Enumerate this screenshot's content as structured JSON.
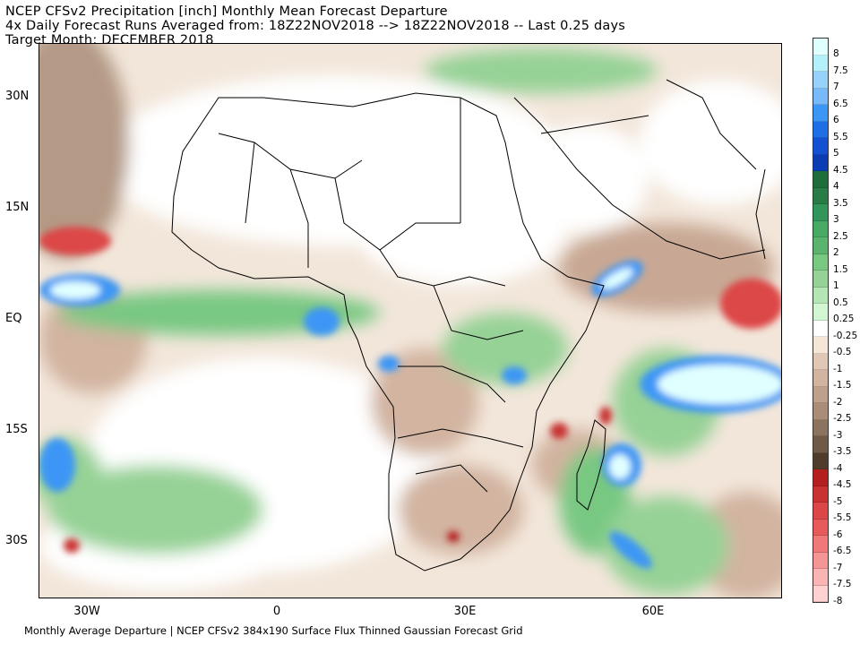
{
  "title": {
    "line1": "NCEP CFSv2 Precipitation [inch] Monthly Mean Forecast Departure",
    "line2": "4x Daily Forecast Runs Averaged from: 18Z22NOV2018 --> 18Z22NOV2018 -- Last 0.25 days",
    "line3": "Target Month: DECEMBER 2018"
  },
  "footer": "Monthly Average Departure | NCEP CFSv2 384x190 Surface Flux Thinned Gaussian Forecast Grid",
  "axes": {
    "lat_labels": [
      "30N",
      "15N",
      "EQ",
      "15S",
      "30S"
    ],
    "lon_labels": [
      "30W",
      "0",
      "30E",
      "60E"
    ]
  },
  "colorbar": {
    "labels": [
      "8",
      "7.5",
      "7",
      "6.5",
      "6",
      "5.5",
      "5",
      "4.5",
      "4",
      "3.5",
      "3",
      "2.5",
      "2",
      "1.5",
      "1",
      "0.5",
      "0.25",
      "-0.25",
      "-0.5",
      "-1",
      "-1.5",
      "-2",
      "-2.5",
      "-3",
      "-3.5",
      "-4",
      "-4.5",
      "-5",
      "-5.5",
      "-6",
      "-6.5",
      "-7",
      "-7.5",
      "-8"
    ],
    "colors": [
      "#e0ffff",
      "#b4f0fa",
      "#96d2fa",
      "#78b9fa",
      "#3c96f5",
      "#1e6ee6",
      "#1450d2",
      "#0a3cb4",
      "#1e6e3c",
      "#287d46",
      "#32965a",
      "#46aa64",
      "#5ab46e",
      "#78c882",
      "#96d296",
      "#b4e6b4",
      "#d2f5d2",
      "#ffffff",
      "#f5e6d7",
      "#e1c8b4",
      "#d2b4a0",
      "#beA08c",
      "#aa8c78",
      "#8c7360",
      "#6e5a46",
      "#503c2d",
      "#b41e1e",
      "#c83232",
      "#dc4646",
      "#e65a5a",
      "#f07878",
      "#f59696",
      "#fab4b4",
      "#ffd2d2"
    ]
  }
}
